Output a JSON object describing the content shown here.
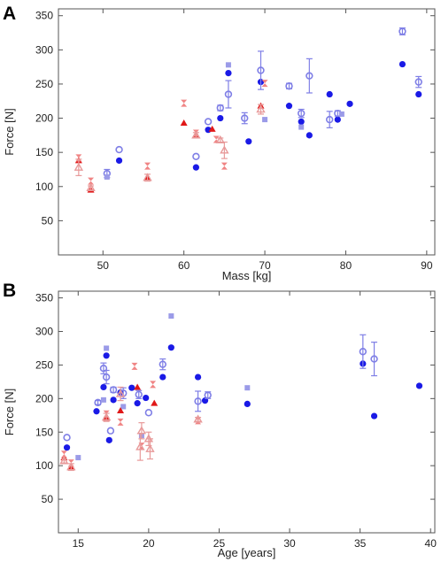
{
  "chart_data": [
    {
      "panel": "A",
      "type": "scatter",
      "xlabel": "Mass [kg]",
      "ylabel": "Force [N]",
      "xlim": [
        44.5,
        91
      ],
      "ylim": [
        0,
        360
      ],
      "xticks": [
        50,
        60,
        70,
        80,
        90
      ],
      "yticks": [
        50,
        100,
        150,
        200,
        250,
        300,
        350
      ],
      "series": [
        {
          "marker": "filled-circle",
          "color": "#1a1ae6",
          "points": [
            [
              52,
              138
            ],
            [
              61.5,
              128
            ],
            [
              63,
              183
            ],
            [
              64.5,
              200
            ],
            [
              65.5,
              266
            ],
            [
              68,
              166
            ],
            [
              69.5,
              253
            ],
            [
              73,
              218
            ],
            [
              74.5,
              195
            ],
            [
              75.5,
              175
            ],
            [
              78,
              235
            ],
            [
              79,
              198
            ],
            [
              80.5,
              221
            ],
            [
              87,
              279
            ],
            [
              89,
              235
            ]
          ]
        },
        {
          "marker": "open-circle-errorbar",
          "color": "#7f7fe6",
          "points": [
            [
              50.5,
              119,
              6
            ],
            [
              52,
              154,
              0
            ],
            [
              61.5,
              144,
              0
            ],
            [
              63,
              195,
              0
            ],
            [
              64.5,
              215,
              4
            ],
            [
              65.5,
              235,
              20
            ],
            [
              67.5,
              200,
              8
            ],
            [
              69.5,
              270,
              28
            ],
            [
              73,
              247,
              4
            ],
            [
              74.5,
              207,
              6
            ],
            [
              75.5,
              262,
              25
            ],
            [
              78,
              198,
              12
            ],
            [
              79,
              207,
              4
            ],
            [
              87,
              327,
              5
            ],
            [
              89,
              253,
              8
            ]
          ]
        },
        {
          "marker": "square",
          "color": "#9b9be8",
          "points": [
            [
              50.5,
              114
            ],
            [
              65.5,
              278
            ],
            [
              70,
              198
            ],
            [
              74.5,
              187
            ],
            [
              79.5,
              206
            ]
          ]
        },
        {
          "marker": "filled-triangle",
          "color": "#e01818",
          "points": [
            [
              47,
              138
            ],
            [
              48.5,
              95
            ],
            [
              55.5,
              112
            ],
            [
              60,
              193
            ],
            [
              61.5,
              176
            ],
            [
              63.5,
              184
            ],
            [
              69.5,
              218
            ]
          ]
        },
        {
          "marker": "hourglass",
          "color": "#f08585",
          "points": [
            [
              47,
              142
            ],
            [
              48.5,
              108
            ],
            [
              55.5,
              130
            ],
            [
              60,
              222
            ],
            [
              61.5,
              178
            ],
            [
              64,
              169
            ],
            [
              65,
              130
            ],
            [
              70,
              251
            ]
          ]
        },
        {
          "marker": "open-triangle-errorbar",
          "color": "#e89a9a",
          "points": [
            [
              47,
              128,
              12
            ],
            [
              48.5,
              98,
              3
            ],
            [
              55.5,
              113,
              5
            ],
            [
              61.5,
              175,
              4
            ],
            [
              64.5,
              168,
              3
            ],
            [
              65,
              153,
              12
            ],
            [
              69.5,
              213,
              7
            ]
          ]
        }
      ]
    },
    {
      "panel": "B",
      "type": "scatter",
      "xlabel": "Age [years]",
      "ylabel": "Force [N]",
      "xlim": [
        13.6,
        40.3
      ],
      "ylim": [
        0,
        360
      ],
      "xticks": [
        15,
        20,
        25,
        30,
        35,
        40
      ],
      "yticks": [
        50,
        100,
        150,
        200,
        250,
        300,
        350
      ],
      "series": [
        {
          "marker": "filled-circle",
          "color": "#1a1ae6",
          "points": [
            [
              14.2,
              127
            ],
            [
              16.3,
              181
            ],
            [
              16.8,
              217
            ],
            [
              17,
              264
            ],
            [
              17.2,
              138
            ],
            [
              17.5,
              198
            ],
            [
              18,
              209
            ],
            [
              18.8,
              216
            ],
            [
              19.2,
              193
            ],
            [
              19.8,
              201
            ],
            [
              21,
              232
            ],
            [
              21.6,
              276
            ],
            [
              23.5,
              232
            ],
            [
              24,
              197
            ],
            [
              27,
              192
            ],
            [
              35.2,
              252
            ],
            [
              36,
              174
            ],
            [
              39.2,
              219
            ]
          ]
        },
        {
          "marker": "open-circle-errorbar",
          "color": "#7f7fe6",
          "points": [
            [
              14.2,
              142,
              0
            ],
            [
              16.4,
              194,
              3
            ],
            [
              16.8,
              245,
              8
            ],
            [
              17,
              232,
              10
            ],
            [
              17.3,
              152,
              0
            ],
            [
              17.5,
              213,
              4
            ],
            [
              18.2,
              208,
              8
            ],
            [
              19.3,
              206,
              6
            ],
            [
              20,
              179,
              0
            ],
            [
              21,
              251,
              8
            ],
            [
              23.5,
              196,
              15
            ],
            [
              24.2,
              205,
              5
            ],
            [
              35.2,
              270,
              25
            ],
            [
              36,
              259,
              25
            ]
          ]
        },
        {
          "marker": "square",
          "color": "#9b9be8",
          "points": [
            [
              15,
              112
            ],
            [
              16.8,
              198
            ],
            [
              17,
              275
            ],
            [
              18.2,
              188
            ],
            [
              19.5,
              145
            ],
            [
              21.6,
              323
            ],
            [
              27,
              216
            ]
          ]
        },
        {
          "marker": "filled-triangle",
          "color": "#e01818",
          "points": [
            [
              14,
              112
            ],
            [
              14.5,
              97
            ],
            [
              17,
              171
            ],
            [
              18,
              182
            ],
            [
              19.2,
              217
            ],
            [
              20.4,
              193
            ]
          ]
        },
        {
          "marker": "hourglass",
          "color": "#f08585",
          "points": [
            [
              14,
              117
            ],
            [
              14.5,
              104
            ],
            [
              17,
              177
            ],
            [
              18,
              165
            ],
            [
              19,
              248
            ],
            [
              19.5,
              129
            ],
            [
              20.3,
              221
            ],
            [
              23.5,
              167
            ]
          ]
        },
        {
          "marker": "open-triangle-errorbar",
          "color": "#e89a9a",
          "points": [
            [
              14,
              107,
              3
            ],
            [
              14.5,
              98,
              5
            ],
            [
              17,
              172,
              6
            ],
            [
              18,
              207,
              10
            ],
            [
              19.4,
              128,
              20
            ],
            [
              19.5,
              152,
              12
            ],
            [
              20,
              140,
              10
            ],
            [
              20.1,
              125,
              15
            ],
            [
              23.5,
              169,
              3
            ]
          ]
        }
      ]
    }
  ]
}
